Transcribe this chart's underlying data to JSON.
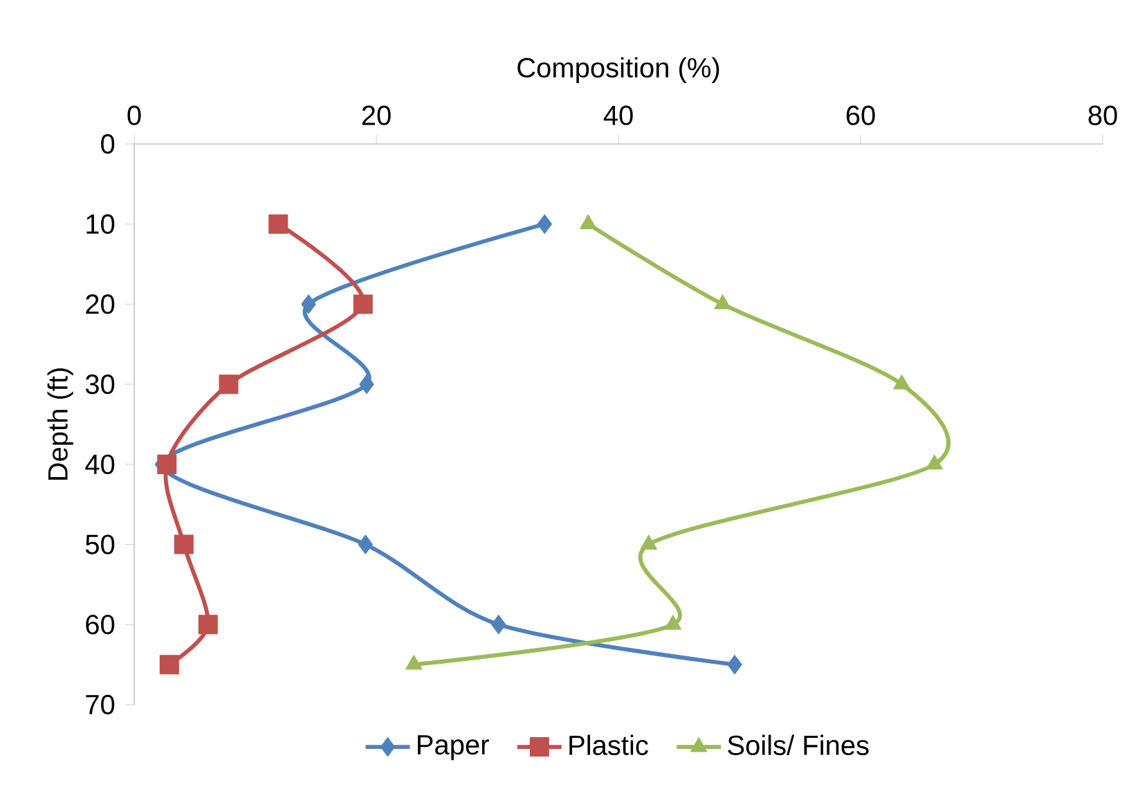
{
  "chart_data": {
    "type": "line",
    "xlabel": "Composition (%)",
    "ylabel": "Depth (ft)",
    "xlim": [
      0,
      80
    ],
    "xticks": [
      0,
      20,
      40,
      60,
      80
    ],
    "ylim": [
      70,
      0
    ],
    "yticks": [
      0,
      10,
      20,
      30,
      40,
      50,
      60,
      70
    ],
    "legend": "bottom",
    "grid": false,
    "line_style": "solid",
    "series": [
      {
        "name": "Paper",
        "color": "#4f81bd",
        "marker": "diamond",
        "x": [
          33.9,
          14.4,
          19.2,
          2.3,
          19.1,
          30.1,
          49.6
        ],
        "values": [
          10,
          20,
          30,
          40,
          50,
          60,
          65
        ]
      },
      {
        "name": "Plastic",
        "color": "#c0504d",
        "marker": "square",
        "x": [
          11.9,
          18.9,
          7.8,
          2.7,
          4.1,
          6.1,
          2.9
        ],
        "values": [
          10,
          20,
          30,
          40,
          50,
          60,
          65
        ]
      },
      {
        "name": "Soils/ Fines",
        "color": "#9bbb59",
        "marker": "triangle",
        "x": [
          37.5,
          48.6,
          63.4,
          66.1,
          42.5,
          44.5,
          23.1
        ],
        "values": [
          10,
          20,
          30,
          40,
          50,
          60,
          65
        ]
      }
    ]
  }
}
